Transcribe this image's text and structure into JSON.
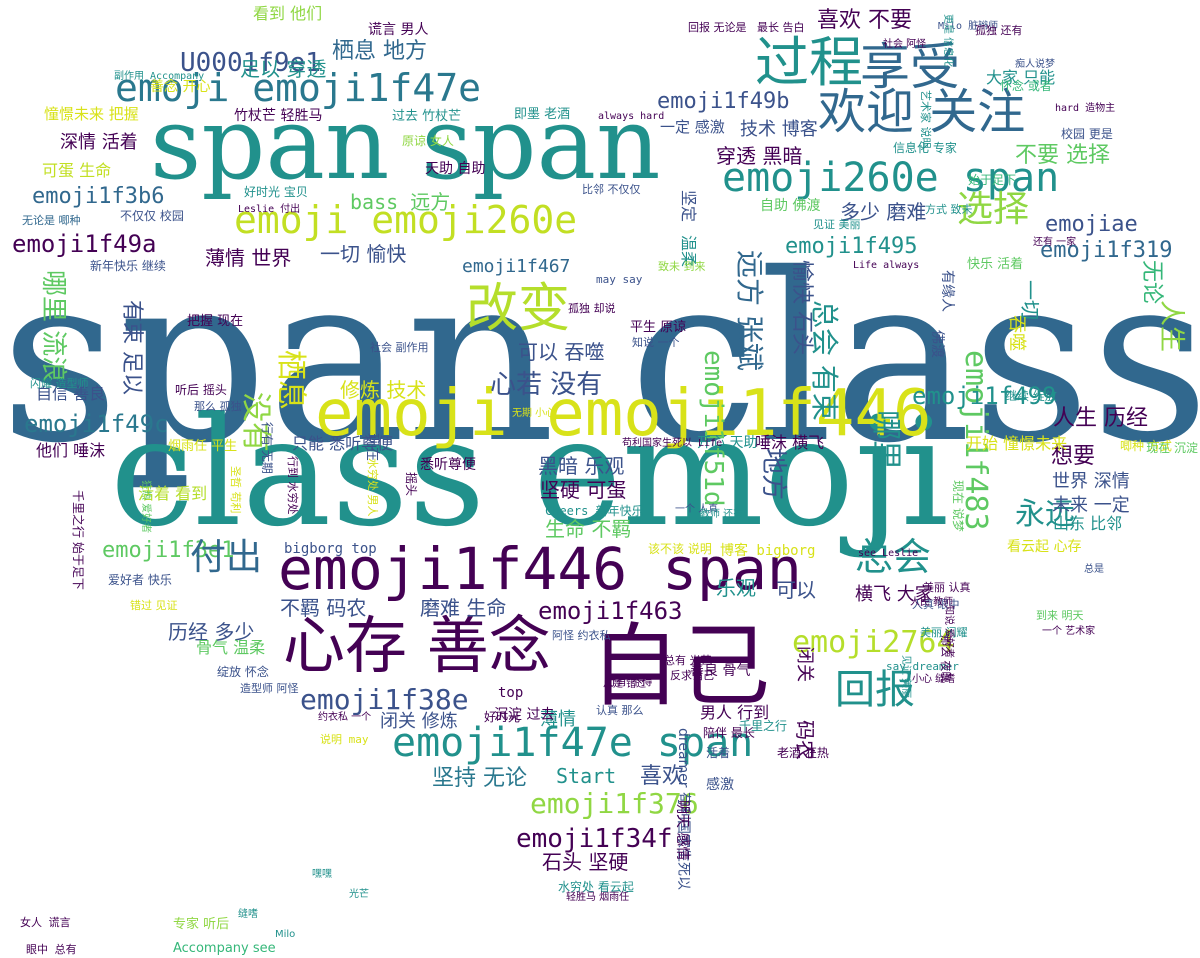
{
  "palette": {
    "dark_purple": "#440154",
    "indigo": "#3b528b",
    "steel_blue": "#31688e",
    "teal": "#21918c",
    "sea_green": "#35b779",
    "lime": "#90d743",
    "yellow": "#d8e219"
  },
  "words": [
    {
      "text": "span class",
      "color": "#31688e"
    },
    {
      "text": "class emoji",
      "color": "#21918c"
    },
    {
      "text": "span span",
      "color": "#21918c"
    },
    {
      "text": "emoji emoji1f446",
      "color": "#d8e219"
    },
    {
      "text": "emoji1f446 span",
      "color": "#440154"
    },
    {
      "text": "自己",
      "color": "#440154"
    },
    {
      "text": "心存 善念",
      "color": "#440154"
    },
    {
      "text": "emoji1f47e span",
      "color": "#21918c"
    },
    {
      "text": "emoji emoji1f47e",
      "color": "#2a788e"
    },
    {
      "text": "emoji emoji260e",
      "color": "#c2df23"
    },
    {
      "text": "emoji260e span",
      "color": "#21918c"
    },
    {
      "text": "改变",
      "color": "#b5de2b"
    },
    {
      "text": "过程",
      "color": "#21918c"
    },
    {
      "text": "享受",
      "color": "#31688e"
    },
    {
      "text": "欢迎 关注",
      "color": "#31688e"
    },
    {
      "text": "U0001f9e1",
      "color": "#3b528b"
    },
    {
      "text": "栖息 地方",
      "color": "#31688e"
    },
    {
      "text": "emoji1f49a",
      "color": "#440154"
    },
    {
      "text": "emoji1f3b6",
      "color": "#31688e"
    },
    {
      "text": "emoji1f49c",
      "color": "#2a788e"
    },
    {
      "text": "emoji1f49b",
      "color": "#3b528b"
    },
    {
      "text": "emoji1f38e",
      "color": "#3b528b"
    },
    {
      "text": "emoji1f376",
      "color": "#90d743"
    },
    {
      "text": "emoji1f34f",
      "color": "#440154"
    },
    {
      "text": "emoji1f463",
      "color": "#440154"
    },
    {
      "text": "emoji2764",
      "color": "#b5de2b"
    },
    {
      "text": "emoji1f483",
      "color": "#5ec962"
    },
    {
      "text": "emoji1f499",
      "color": "#21918c"
    },
    {
      "text": "emoji1f495",
      "color": "#21918c"
    },
    {
      "text": "emoji1f51d",
      "color": "#5ec962"
    },
    {
      "text": "emoji1f467",
      "color": "#31688e"
    },
    {
      "text": "emoji1f319",
      "color": "#31688e"
    },
    {
      "text": "emoji1f3e1",
      "color": "#5ec962"
    },
    {
      "text": "emojiae",
      "color": "#3b528b"
    },
    {
      "text": "付出",
      "color": "#31688e"
    },
    {
      "text": "总会",
      "color": "#21918c"
    },
    {
      "text": "回报",
      "color": "#21918c"
    },
    {
      "text": "选择",
      "color": "#90d743"
    },
    {
      "text": "哪里 流浪",
      "color": "#5ec962"
    },
    {
      "text": "有束 足以",
      "color": "#3b528b"
    },
    {
      "text": "没有",
      "color": "#90d743"
    },
    {
      "text": "栖息",
      "color": "#d8e219"
    },
    {
      "text": "远方 张斌",
      "color": "#31688e"
    },
    {
      "text": "愉快 石头",
      "color": "#3b528b"
    },
    {
      "text": "总会 有束",
      "color": "#21918c"
    },
    {
      "text": "地方",
      "color": "#3b528b"
    },
    {
      "text": "哪里",
      "color": "#21918c"
    },
    {
      "text": "永远",
      "color": "#21918c"
    },
    {
      "text": "心若 没有",
      "color": "#3b528b"
    },
    {
      "text": "可以 吞噬",
      "color": "#3b528b"
    },
    {
      "text": "黑暗 乐观",
      "color": "#3b528b"
    },
    {
      "text": "坚硬 可蛋",
      "color": "#440154"
    },
    {
      "text": "生命 不羁",
      "color": "#5ec962"
    },
    {
      "text": "磨难 生命",
      "color": "#3b528b"
    },
    {
      "text": "不羁 码农",
      "color": "#3b528b"
    },
    {
      "text": "历经 多少",
      "color": "#3b528b"
    },
    {
      "text": "坚持 无论",
      "color": "#2a788e"
    },
    {
      "text": "石头 坚硬",
      "color": "#440154"
    },
    {
      "text": "喜欢",
      "color": "#3b528b"
    },
    {
      "text": "Start",
      "color": "#21918c"
    },
    {
      "text": "人生 历经",
      "color": "#440154"
    },
    {
      "text": "想要",
      "color": "#440154"
    },
    {
      "text": "世界 深情",
      "color": "#3b528b"
    },
    {
      "text": "未来 一定",
      "color": "#3b528b"
    },
    {
      "text": "乐观",
      "color": "#21918c"
    },
    {
      "text": "可以",
      "color": "#3b528b"
    },
    {
      "text": "横飞 大家",
      "color": "#440154"
    },
    {
      "text": "喜欢 不要",
      "color": "#440154"
    },
    {
      "text": "技术 博客",
      "color": "#3b528b"
    },
    {
      "text": "穿透 黑暗",
      "color": "#440154"
    },
    {
      "text": "不要 选择",
      "color": "#5ec962"
    },
    {
      "text": "多少 磨难",
      "color": "#3b528b"
    },
    {
      "text": "一切 愉快",
      "color": "#3b528b"
    },
    {
      "text": "薄情 世界",
      "color": "#440154"
    },
    {
      "text": "bass 远方",
      "color": "#5ec962"
    },
    {
      "text": "足以 穿透",
      "color": "#21918c"
    },
    {
      "text": "看到 他们",
      "color": "#90d743"
    },
    {
      "text": "修炼 技术",
      "color": "#d8e219"
    },
    {
      "text": "只能 悉听尊便",
      "color": "#3b528b"
    },
    {
      "text": "唾沫 横飞",
      "color": "#440154"
    },
    {
      "text": "开心 天助",
      "color": "#21918c"
    },
    {
      "text": "开始 憧憬未来",
      "color": "#d8e219"
    },
    {
      "text": "自信 善良",
      "color": "#3b528b"
    },
    {
      "text": "他们 唾沫",
      "color": "#440154"
    },
    {
      "text": "活着 看到",
      "color": "#b5de2b"
    },
    {
      "text": "深情 活着",
      "color": "#440154"
    },
    {
      "text": "可蛋 生命",
      "color": "#c2df23"
    },
    {
      "text": "憧憬未来 把握",
      "color": "#d8e219"
    },
    {
      "text": "善念 开心",
      "color": "#d8e219"
    },
    {
      "text": "大家 只能",
      "color": "#21918c"
    },
    {
      "text": "一定 感激",
      "color": "#3b528b"
    },
    {
      "text": "bigborg top",
      "color": "#3b528b"
    },
    {
      "text": "博客 bigborg",
      "color": "#d8e219"
    },
    {
      "text": "薄情",
      "color": "#21918c"
    },
    {
      "text": "闭关 修炼",
      "color": "#3b528b"
    },
    {
      "text": "男人 行到",
      "color": "#440154"
    },
    {
      "text": "善良 骨气",
      "color": "#440154"
    },
    {
      "text": "骨气 温柔",
      "color": "#5ec962"
    },
    {
      "text": "码农",
      "color": "#440154"
    },
    {
      "text": "闭关",
      "color": "#440154"
    },
    {
      "text": "人生",
      "color": "#90d743"
    },
    {
      "text": "无论",
      "color": "#35b779"
    },
    {
      "text": "一切",
      "color": "#21918c"
    },
    {
      "text": "吞噬",
      "color": "#d8e219"
    },
    {
      "text": "山东 比邻",
      "color": "#21918c"
    },
    {
      "text": "看云起 心存",
      "color": "#d8e219"
    },
    {
      "text": "竹杖芒 轻胜马",
      "color": "#440154"
    },
    {
      "text": "天助 自助",
      "color": "#440154"
    },
    {
      "text": "原谅 女人",
      "color": "#90d743"
    },
    {
      "text": "过去 竹杖芒",
      "color": "#21918c"
    },
    {
      "text": "谎言 男人",
      "color": "#440154"
    },
    {
      "text": "好时光 宝贝",
      "color": "#21918c"
    },
    {
      "text": "比邻 不仅仅",
      "color": "#3b528b"
    },
    {
      "text": "平生 原谅",
      "color": "#440154"
    },
    {
      "text": "把握 现在",
      "color": "#440154"
    },
    {
      "text": "听后 摇头",
      "color": "#440154"
    },
    {
      "text": "烟雨任 平生",
      "color": "#d8e219"
    },
    {
      "text": "坚定",
      "color": "#3b528b"
    },
    {
      "text": "温柔",
      "color": "#21918c"
    },
    {
      "text": "自助 佛渡",
      "color": "#5ec962"
    },
    {
      "text": "悉听尊便",
      "color": "#440154"
    },
    {
      "text": "有缘人",
      "color": "#3b528b"
    },
    {
      "text": "佛渡",
      "color": "#3b528b"
    },
    {
      "text": "快乐 活着",
      "color": "#5ec962"
    },
    {
      "text": "始于足下",
      "color": "#35b779"
    },
    {
      "text": "信息化 专家",
      "color": "#21918c"
    },
    {
      "text": "校园 更是",
      "color": "#3b528b"
    },
    {
      "text": "即墨 老酒",
      "color": "#21918c"
    },
    {
      "text": "Milo 脏辫师",
      "color": "#3b528b"
    },
    {
      "text": "怀念 或者",
      "color": "#35b779"
    },
    {
      "text": "hard 造物主",
      "color": "#440154"
    },
    {
      "text": "最长 告白",
      "color": "#440154"
    },
    {
      "text": "回报 无论是",
      "color": "#440154"
    },
    {
      "text": "副作用 Accompany",
      "color": "#21918c"
    },
    {
      "text": "always hard",
      "color": "#440154"
    },
    {
      "text": "Leslie 付出",
      "color": "#440154"
    },
    {
      "text": "无论是 唧种",
      "color": "#31688e"
    },
    {
      "text": "不仅仅 校园",
      "color": "#3b528b"
    },
    {
      "text": "新年快乐 继续",
      "color": "#3b528b"
    },
    {
      "text": "may say",
      "color": "#3b528b"
    },
    {
      "text": "致未 到来",
      "color": "#90d743"
    },
    {
      "text": "Life always",
      "color": "#440154"
    },
    {
      "text": "还有 一家",
      "color": "#440154"
    },
    {
      "text": "见证 美丽",
      "color": "#21918c"
    },
    {
      "text": "方式 致未",
      "color": "#21918c"
    },
    {
      "text": "孤独 却说",
      "color": "#440154"
    },
    {
      "text": "知说 一个",
      "color": "#3b528b"
    },
    {
      "text": "社会 副作用",
      "color": "#3b528b"
    },
    {
      "text": "闪耀 造型师",
      "color": "#21918c"
    },
    {
      "text": "那么 孤独",
      "color": "#3b528b"
    },
    {
      "text": "行有 无期",
      "color": "#3b528b"
    },
    {
      "text": "无期 小心",
      "color": "#d8e219"
    },
    {
      "text": "苟利国家生死以 Life",
      "color": "#440154"
    },
    {
      "text": "Cheers 新年快乐",
      "color": "#21918c"
    },
    {
      "text": "一个 人真",
      "color": "#3b528b"
    },
    {
      "text": "教师 还有",
      "color": "#21918c"
    },
    {
      "text": "该不该 说明",
      "color": "#d8e219"
    },
    {
      "text": "see Leslie",
      "color": "#440154"
    },
    {
      "text": "继续 绽放",
      "color": "#21918c"
    },
    {
      "text": "唧种 方式",
      "color": "#d8e219"
    },
    {
      "text": "人真 眼中",
      "color": "#3b528b"
    },
    {
      "text": "一个 艺术家",
      "color": "#440154"
    },
    {
      "text": "到来 明天",
      "color": "#5ec962"
    },
    {
      "text": "美丽 认真",
      "color": "#440154"
    },
    {
      "text": "人民 教师",
      "color": "#440154"
    },
    {
      "text": "美丽 闪耀",
      "color": "#21918c"
    },
    {
      "text": "say dreamer",
      "color": "#21918c"
    },
    {
      "text": "小心 缝嗜",
      "color": "#440154"
    },
    {
      "text": "爱好者 快乐",
      "color": "#3b528b"
    },
    {
      "text": "错过 见证",
      "color": "#d8e219"
    },
    {
      "text": "说明 may",
      "color": "#d8e219"
    },
    {
      "text": "约衣私 一个",
      "color": "#440154"
    },
    {
      "text": "造型师 阿怪",
      "color": "#3b528b"
    },
    {
      "text": "绽放 怀念",
      "color": "#3b528b"
    },
    {
      "text": "阿怪 约衣私",
      "color": "#3b528b"
    },
    {
      "text": "总有 光芒",
      "color": "#440154"
    },
    {
      "text": "行有 不得",
      "color": "#440154"
    },
    {
      "text": "反求诸己",
      "color": "#440154"
    },
    {
      "text": "认真 那么",
      "color": "#3b528b"
    },
    {
      "text": "总是 错过",
      "color": "#440154"
    },
    {
      "text": "陪伴 最长",
      "color": "#440154"
    },
    {
      "text": "千里之行",
      "color": "#21918c"
    },
    {
      "text": "活着",
      "color": "#3b528b"
    },
    {
      "text": "老酒 狂热",
      "color": "#440154"
    },
    {
      "text": "top",
      "color": "#440154"
    },
    {
      "text": "沉淀 过去",
      "color": "#440154"
    },
    {
      "text": "好时光",
      "color": "#440154"
    },
    {
      "text": "摇头",
      "color": "#440154"
    },
    {
      "text": "现在",
      "color": "#3b528b"
    },
    {
      "text": "感激",
      "color": "#3b528b"
    },
    {
      "text": "水穷处 看云起",
      "color": "#21918c"
    },
    {
      "text": "轻胜马 烟雨任",
      "color": "#440154"
    },
    {
      "text": "女人 谎言",
      "color": "#440154"
    },
    {
      "text": "专家 听后",
      "color": "#90d743"
    },
    {
      "text": "眼中 总有",
      "color": "#440154"
    },
    {
      "text": "Accompany see",
      "color": "#35b779"
    },
    {
      "text": "千里之行 始于足下",
      "color": "#440154"
    },
    {
      "text": "dreamer 苟利国家生死以",
      "color": "#3b528b"
    },
    {
      "text": "明天 感情",
      "color": "#440154"
    },
    {
      "text": "现在 沉淀",
      "color": "#5ec962"
    },
    {
      "text": "水穷处 男人",
      "color": "#d8e219"
    },
    {
      "text": "行到 水穷处",
      "color": "#440154"
    },
    {
      "text": "圣哲 苟利",
      "color": "#d8e219"
    },
    {
      "text": "狂热 爱好者",
      "color": "#5ec962"
    },
    {
      "text": "那么 夜晚",
      "color": "#440154"
    },
    {
      "text": "现在 说梦",
      "color": "#5ec962"
    },
    {
      "text": "知说 爱好者",
      "color": "#440154"
    },
    {
      "text": "艺术家 说明",
      "color": "#21918c"
    },
    {
      "text": "更是 信息化",
      "color": "#21918c"
    },
    {
      "text": "见证 美丽",
      "color": "#21918c"
    },
    {
      "text": "孤独 还有",
      "color": "#440154"
    },
    {
      "text": "社会 阿怪",
      "color": "#440154"
    },
    {
      "text": "痴人说梦",
      "color": "#3b528b"
    },
    {
      "text": "总是",
      "color": "#3b528b"
    },
    {
      "text": "缝嗜",
      "color": "#21918c"
    },
    {
      "text": "Milo",
      "color": "#21918c"
    },
    {
      "text": "嘿嘿",
      "color": "#21918c"
    },
    {
      "text": "光芒",
      "color": "#21918c"
    }
  ]
}
